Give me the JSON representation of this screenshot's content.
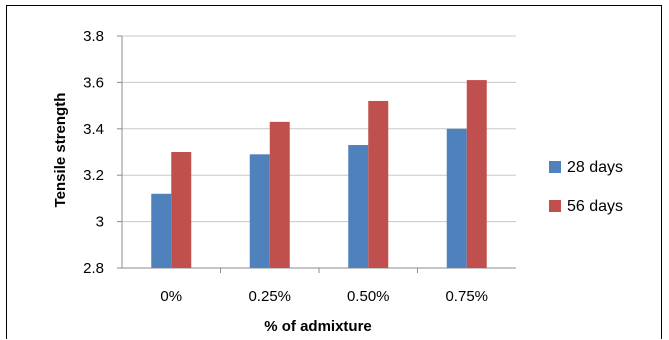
{
  "chart_data": {
    "type": "bar",
    "categories": [
      "0%",
      "0.25%",
      "0.50%",
      "0.75%"
    ],
    "series": [
      {
        "name": "28 days",
        "color": "#4f81bd",
        "values": [
          3.12,
          3.29,
          3.33,
          3.4
        ]
      },
      {
        "name": "56 days",
        "color": "#c0504d",
        "values": [
          3.3,
          3.43,
          3.52,
          3.61
        ]
      }
    ],
    "xlabel": "% of admixture",
    "ylabel": "Tensile strength",
    "ylim": [
      2.8,
      3.8
    ],
    "yticks": [
      "2.8",
      "3",
      "3.2",
      "3.4",
      "3.6",
      "3.8"
    ],
    "grid": true,
    "legend_position": "right"
  }
}
